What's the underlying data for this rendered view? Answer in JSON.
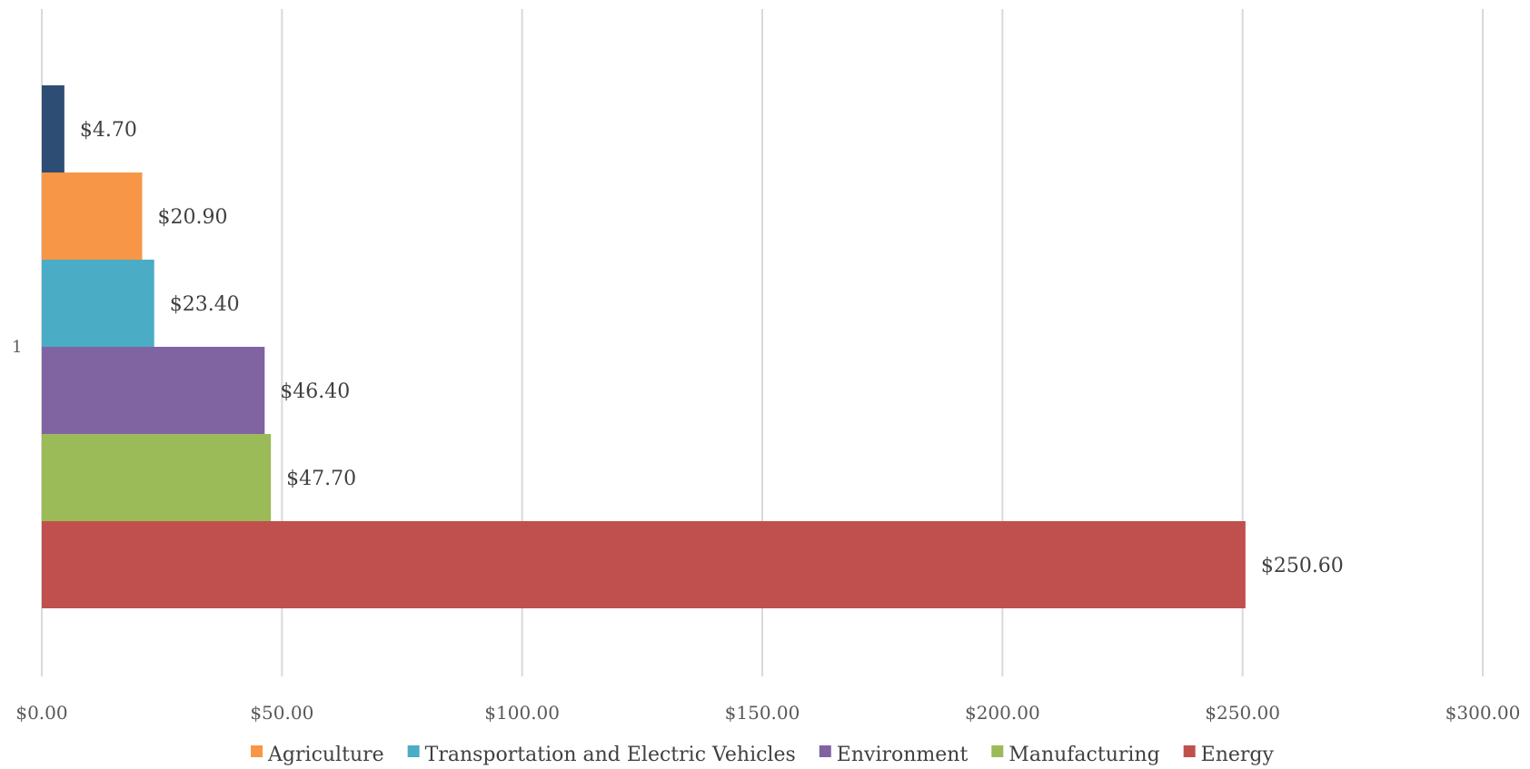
{
  "chart_data": {
    "type": "bar",
    "orientation": "horizontal",
    "categories": [
      "1"
    ],
    "series": [
      {
        "name": "",
        "values": [
          4.7
        ],
        "label": "$4.70",
        "color": "#2E4D74"
      },
      {
        "name": "Agriculture",
        "values": [
          20.9
        ],
        "label": "$20.90",
        "color": "#F79646"
      },
      {
        "name": "Transportation and Electric Vehicles",
        "values": [
          23.4
        ],
        "label": "$23.40",
        "color": "#4BACC6"
      },
      {
        "name": "Environment",
        "values": [
          46.4
        ],
        "label": "$46.40",
        "color": "#8064A2"
      },
      {
        "name": "Manufacturing",
        "values": [
          47.7
        ],
        "label": "$47.70",
        "color": "#9BBB59"
      },
      {
        "name": "Energy",
        "values": [
          250.6
        ],
        "label": "$250.60",
        "color": "#C0504D"
      }
    ],
    "xlim": [
      0,
      300
    ],
    "xticks": [
      0,
      50,
      100,
      150,
      200,
      250,
      300
    ],
    "xtick_labels": [
      "$0.00",
      "$50.00",
      "$100.00",
      "$150.00",
      "$200.00",
      "$250.00",
      "$300.00"
    ],
    "grid": true,
    "legend_position": "bottom",
    "title": "",
    "xlabel": "",
    "ylabel": ""
  }
}
